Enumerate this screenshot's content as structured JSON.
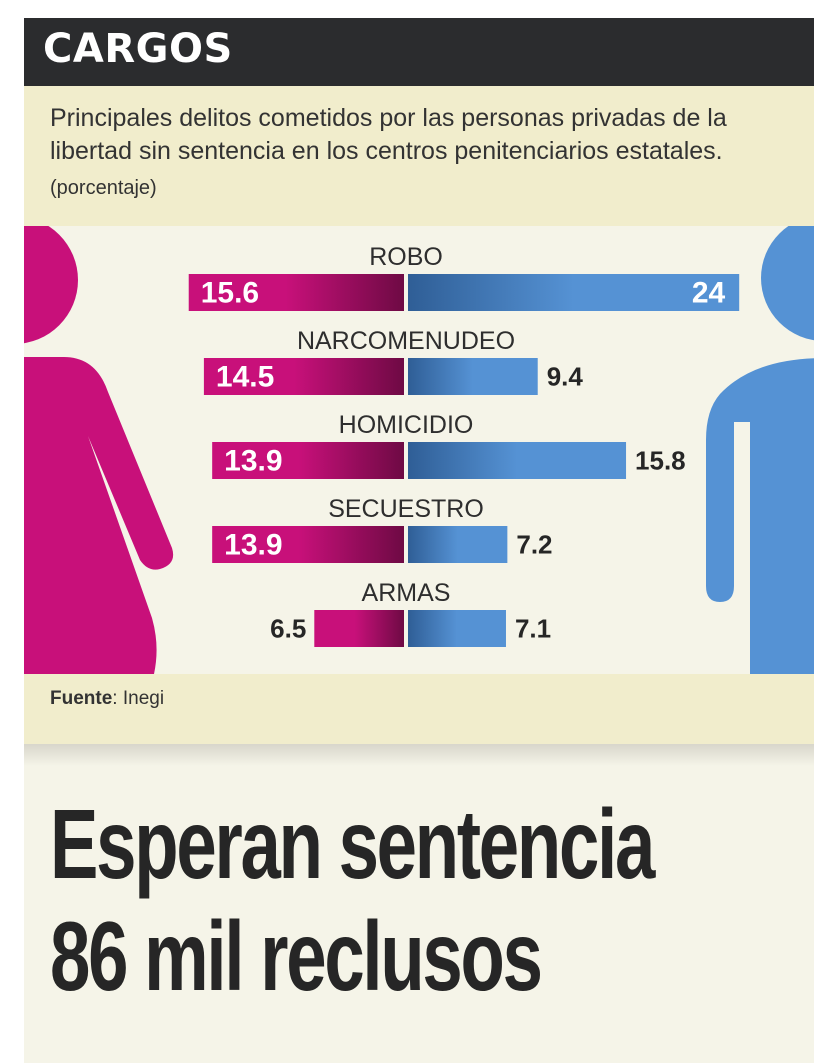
{
  "header": {
    "title": "CARGOS"
  },
  "intro": {
    "subtitle": "Principales delitos cometidos por las personas privadas de la libertad sin sentencia en los centros penitenciarios estatales.",
    "unit": "(porcentaje)"
  },
  "footer": {
    "source_key": "Fuente",
    "source_sep": ": ",
    "source_value": "Inegi"
  },
  "headline": {
    "line1": "Esperan sentencia",
    "line2": "86 mil reclusos"
  },
  "colors": {
    "women": "#c8107a",
    "women_dark": "#6e0a44",
    "men": "#5592d4",
    "men_dark": "#2f5e96"
  },
  "chart_data": {
    "type": "bar",
    "orientation": "diverging-horizontal",
    "categories": [
      "ROBO",
      "NARCOMENUDEO",
      "HOMICIDIO",
      "SECUESTRO",
      "ARMAS"
    ],
    "series": [
      {
        "values": [
          15.6,
          14.5,
          13.9,
          13.9,
          6.5
        ],
        "color": "#c8107a",
        "side": "left"
      },
      {
        "values": [
          24,
          9.4,
          15.8,
          7.2,
          7.1
        ],
        "color": "#5592d4",
        "side": "right"
      }
    ],
    "xlim": [
      0,
      24
    ],
    "grid": false,
    "legend": "none"
  }
}
